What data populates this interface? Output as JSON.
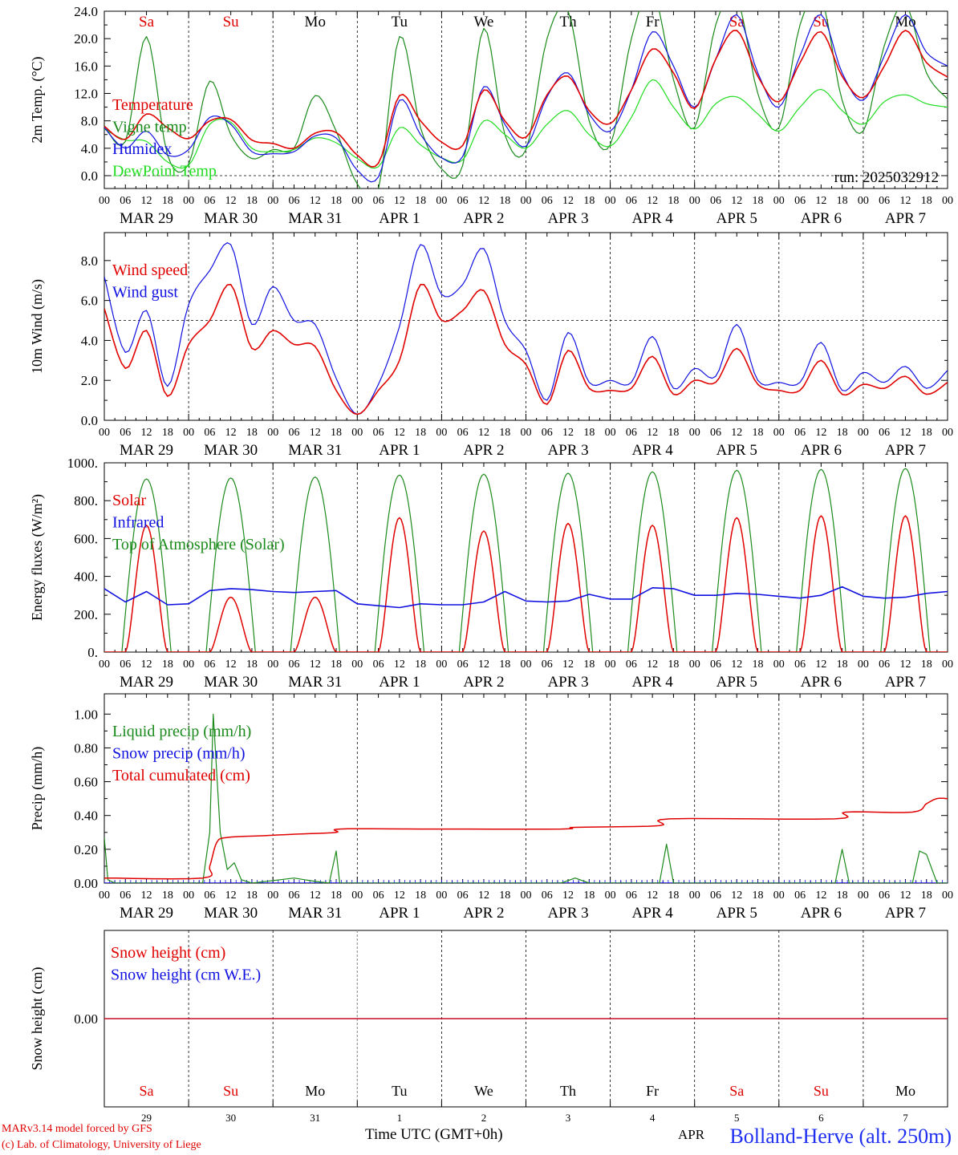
{
  "colors": {
    "red": "#e00000",
    "blue": "#1010e0",
    "green": "#1a8a1a",
    "lightgreen": "#22dd22",
    "grey": "#888888",
    "black": "#000000"
  },
  "run_label": "run: 2025032912",
  "time_ticks": [
    "00",
    "06",
    "12",
    "18"
  ],
  "end_tick": "00",
  "date_labels": [
    "MAR 29",
    "MAR 30",
    "MAR 31",
    "APR  1",
    "APR  2",
    "APR  3",
    "APR  4",
    "APR  5",
    "APR  6",
    "APR  7"
  ],
  "days": [
    {
      "label": "Sa",
      "color": "#e00000"
    },
    {
      "label": "Su",
      "color": "#e00000"
    },
    {
      "label": "Mo",
      "color": "#000000"
    },
    {
      "label": "Tu",
      "color": "#000000"
    },
    {
      "label": "We",
      "color": "#000000"
    },
    {
      "label": "Th",
      "color": "#000000"
    },
    {
      "label": "Fr",
      "color": "#000000"
    },
    {
      "label": "Sa",
      "color": "#e00000"
    },
    {
      "label": "Su",
      "color": "#e00000"
    },
    {
      "label": "Mo",
      "color": "#000000"
    }
  ],
  "bottom_day_numbers": [
    "29",
    "30",
    "31",
    "1",
    "2",
    "3",
    "4",
    "5",
    "6",
    "7"
  ],
  "footer": {
    "model": "MARv3.14 model forced by GFS",
    "lab": "(c) Lab. of Climatology, University of Liege",
    "axis": "Time UTC (GMT+0h)",
    "month": "APR",
    "station": "Bolland-Herve (alt. 250m)"
  },
  "chart_data": [
    {
      "type": "line",
      "ylabel": "2m Temp. (°C)",
      "ylim": [
        -1.5,
        24
      ],
      "yticks": [
        "0.0",
        "4.0",
        "8.0",
        "12.0",
        "16.0",
        "20.0",
        "24.0"
      ],
      "ytick_values": [
        0,
        4,
        8,
        12,
        16,
        20,
        24
      ],
      "reference_line": 0,
      "x_hours": [
        0,
        6,
        12,
        18,
        24,
        30,
        36,
        42,
        48,
        54,
        60,
        66,
        72,
        78,
        84,
        90,
        96,
        102,
        108,
        114,
        120,
        126,
        132,
        138,
        144,
        150,
        156,
        162,
        168,
        174,
        180,
        186,
        192,
        198,
        204,
        210,
        216,
        222,
        228,
        234,
        240
      ],
      "series": [
        {
          "name": "Temperature",
          "color": "#e00000",
          "values": [
            7.2,
            5.3,
            9.0,
            7.0,
            5.4,
            8.0,
            8.2,
            5.2,
            4.7,
            4.0,
            6.2,
            6.3,
            3.0,
            1.8,
            11.7,
            8.0,
            4.9,
            4.4,
            12.5,
            8.0,
            5.6,
            11.8,
            14.5,
            9.5,
            7.6,
            12.5,
            18.5,
            15.0,
            9.8,
            17.0,
            21.2,
            14.5,
            10.8,
            16.5,
            21.0,
            14.5,
            11.4,
            16.0,
            21.2,
            16.5,
            14.4
          ]
        },
        {
          "name": "Vigne temp",
          "color": "#1a8a1a",
          "values": [
            7.3,
            5.0,
            20.3,
            3.0,
            1.7,
            13.8,
            6.0,
            2.5,
            3.8,
            4.0,
            11.7,
            6.5,
            -1.2,
            -2.0,
            20.3,
            7.0,
            1.0,
            1.5,
            21.5,
            6.0,
            3.8,
            20.0,
            24,
            8.0,
            4.5,
            20.0,
            27,
            14.0,
            7.0,
            22.0,
            26,
            12.0,
            7.0,
            22.0,
            26,
            11.0,
            6.5,
            19.0,
            25,
            15.0,
            11.2
          ]
        },
        {
          "name": "Humidex",
          "color": "#1010e0",
          "values": [
            7.0,
            4.0,
            6.5,
            3.0,
            3.8,
            8.5,
            7.5,
            3.5,
            3.2,
            3.5,
            5.8,
            5.5,
            0.8,
            -0.2,
            11.0,
            6.0,
            2.6,
            2.8,
            13.0,
            7.5,
            4.3,
            11.5,
            15.0,
            9.0,
            6.5,
            12.5,
            21.0,
            16.0,
            10.0,
            17.0,
            23.5,
            15.0,
            10.0,
            17.5,
            23.5,
            15.0,
            11.0,
            17.5,
            23.5,
            18.0,
            16.0
          ]
        },
        {
          "name": "DewPoint Temp",
          "color": "#22dd22",
          "values": [
            6.8,
            5.2,
            5.0,
            2.0,
            1.5,
            7.5,
            7.8,
            4.0,
            3.5,
            3.8,
            5.5,
            4.8,
            2.5,
            1.3,
            7.0,
            4.5,
            2.6,
            2.3,
            8.0,
            6.0,
            4.0,
            7.5,
            9.5,
            6.0,
            4.3,
            8.5,
            14.0,
            10.0,
            6.8,
            10.5,
            11.5,
            9.0,
            6.5,
            10.0,
            12.6,
            9.5,
            7.5,
            10.8,
            11.8,
            10.5,
            10.0
          ]
        }
      ]
    },
    {
      "type": "line",
      "ylabel": "10m Wind (m/s)",
      "ylim": [
        0,
        9.4
      ],
      "yticks": [
        "0.0",
        "2.0",
        "4.0",
        "6.0",
        "8.0"
      ],
      "ytick_values": [
        0,
        2,
        4,
        6,
        8
      ],
      "reference_line": 5,
      "x_hours": [
        0,
        6,
        12,
        18,
        24,
        30,
        36,
        42,
        48,
        54,
        60,
        66,
        72,
        78,
        84,
        90,
        96,
        102,
        108,
        114,
        120,
        126,
        132,
        138,
        144,
        150,
        156,
        162,
        168,
        174,
        180,
        186,
        192,
        198,
        204,
        210,
        216,
        222,
        228,
        234,
        240
      ],
      "series": [
        {
          "name": "Wind speed",
          "color": "#e00000",
          "values": [
            5.6,
            2.6,
            4.5,
            1.2,
            3.8,
            5.0,
            6.8,
            3.6,
            4.5,
            3.8,
            3.7,
            1.5,
            0.3,
            1.5,
            3.0,
            6.8,
            5.0,
            5.5,
            6.5,
            3.8,
            2.8,
            0.8,
            3.5,
            1.6,
            1.5,
            1.6,
            3.2,
            1.3,
            2.0,
            1.9,
            3.6,
            1.8,
            1.5,
            1.5,
            3.0,
            1.3,
            1.8,
            1.6,
            2.2,
            1.3,
            1.9
          ]
        },
        {
          "name": "Wind gust",
          "color": "#1010e0",
          "values": [
            7.2,
            3.4,
            5.5,
            1.7,
            5.8,
            7.5,
            8.8,
            4.8,
            6.7,
            5.0,
            4.8,
            2.1,
            0.3,
            1.8,
            4.7,
            8.8,
            6.3,
            6.8,
            8.6,
            5.0,
            3.5,
            1.0,
            4.4,
            1.9,
            2.0,
            1.9,
            4.2,
            1.6,
            2.6,
            2.2,
            4.8,
            2.0,
            1.9,
            1.9,
            3.9,
            1.5,
            2.4,
            1.9,
            2.7,
            1.6,
            2.5
          ]
        }
      ]
    },
    {
      "type": "line",
      "ylabel": "Energy fluxes (W/m²)",
      "ylim": [
        0,
        1000
      ],
      "yticks": [
        "0.",
        "200.",
        "400.",
        "600.",
        "800.",
        "1000."
      ],
      "ytick_values": [
        0,
        200,
        400,
        600,
        800,
        1000
      ],
      "day_peaks": {
        "toa": [
          915,
          920,
          925,
          935,
          940,
          945,
          952,
          960,
          965,
          970
        ],
        "solar": [
          670,
          290,
          290,
          710,
          640,
          680,
          670,
          710,
          720,
          720
        ]
      },
      "series": [
        {
          "name": "Solar",
          "color": "#e00000"
        },
        {
          "name": "Infrared",
          "color": "#1010e0",
          "x_hours": [
            0,
            6,
            12,
            18,
            24,
            30,
            36,
            42,
            48,
            54,
            60,
            66,
            72,
            78,
            84,
            90,
            96,
            102,
            108,
            114,
            120,
            126,
            132,
            138,
            144,
            150,
            156,
            162,
            168,
            174,
            180,
            186,
            192,
            198,
            204,
            210,
            216,
            222,
            228,
            234,
            240
          ],
          "values": [
            335,
            265,
            320,
            250,
            255,
            325,
            335,
            330,
            320,
            315,
            320,
            325,
            255,
            245,
            235,
            255,
            250,
            250,
            265,
            320,
            270,
            265,
            270,
            305,
            280,
            280,
            340,
            335,
            300,
            300,
            310,
            305,
            295,
            285,
            300,
            345,
            295,
            285,
            290,
            310,
            320
          ]
        },
        {
          "name": "Top of Atmosphere (Solar)",
          "color": "#1a8a1a"
        }
      ]
    },
    {
      "type": "line",
      "ylabel": "Precip (mm/h)",
      "ylim": [
        0,
        1.12
      ],
      "yticks": [
        "0.00",
        "0.20",
        "0.40",
        "0.60",
        "0.80",
        "1.00"
      ],
      "ytick_values": [
        0,
        0.2,
        0.4,
        0.6,
        0.8,
        1.0
      ],
      "series": [
        {
          "name": "Liquid precip (mm/h)",
          "color": "#1a8a1a",
          "points": [
            [
              0,
              0.27
            ],
            [
              1,
              0.02
            ],
            [
              3,
              0
            ],
            [
              28,
              0
            ],
            [
              30,
              0.3
            ],
            [
              31,
              1.0
            ],
            [
              33,
              0.3
            ],
            [
              35,
              0.08
            ],
            [
              37,
              0.12
            ],
            [
              39,
              0.02
            ],
            [
              42,
              0
            ],
            [
              50,
              0.02
            ],
            [
              54,
              0.03
            ],
            [
              60,
              0.01
            ],
            [
              64,
              0
            ],
            [
              66,
              0.19
            ],
            [
              67,
              0
            ],
            [
              130,
              0
            ],
            [
              134,
              0.03
            ],
            [
              138,
              0
            ],
            [
              158,
              0
            ],
            [
              160,
              0.23
            ],
            [
              162,
              0
            ],
            [
              208,
              0
            ],
            [
              210,
              0.2
            ],
            [
              212,
              0
            ],
            [
              230,
              0
            ],
            [
              232,
              0.19
            ],
            [
              234,
              0.17
            ],
            [
              237,
              0
            ],
            [
              240,
              0
            ]
          ]
        },
        {
          "name": "Snow precip (mm/h)",
          "color": "#1010e0",
          "points": [
            [
              0,
              0
            ],
            [
              240,
              0
            ]
          ]
        },
        {
          "name": "Total cumulated (cm)",
          "color": "#e00000",
          "points": [
            [
              0,
              0.03
            ],
            [
              28,
              0.03
            ],
            [
              30,
              0.1
            ],
            [
              32,
              0.24
            ],
            [
              35,
              0.27
            ],
            [
              45,
              0.28
            ],
            [
              55,
              0.29
            ],
            [
              66,
              0.3
            ],
            [
              67,
              0.32
            ],
            [
              90,
              0.32
            ],
            [
              130,
              0.32
            ],
            [
              134,
              0.33
            ],
            [
              158,
              0.34
            ],
            [
              161,
              0.38
            ],
            [
              208,
              0.38
            ],
            [
              211,
              0.42
            ],
            [
              230,
              0.42
            ],
            [
              234,
              0.47
            ],
            [
              237,
              0.5
            ],
            [
              240,
              0.5
            ]
          ]
        }
      ]
    },
    {
      "type": "line",
      "ylabel": "Snow height (cm)",
      "yticks": [
        "0.00"
      ],
      "series": [
        {
          "name": "Snow height (cm)",
          "color": "#e00000",
          "values": [
            0,
            0
          ]
        },
        {
          "name": "Snow height (cm W.E.)",
          "color": "#1010e0",
          "values": [
            0,
            0
          ]
        }
      ]
    }
  ]
}
